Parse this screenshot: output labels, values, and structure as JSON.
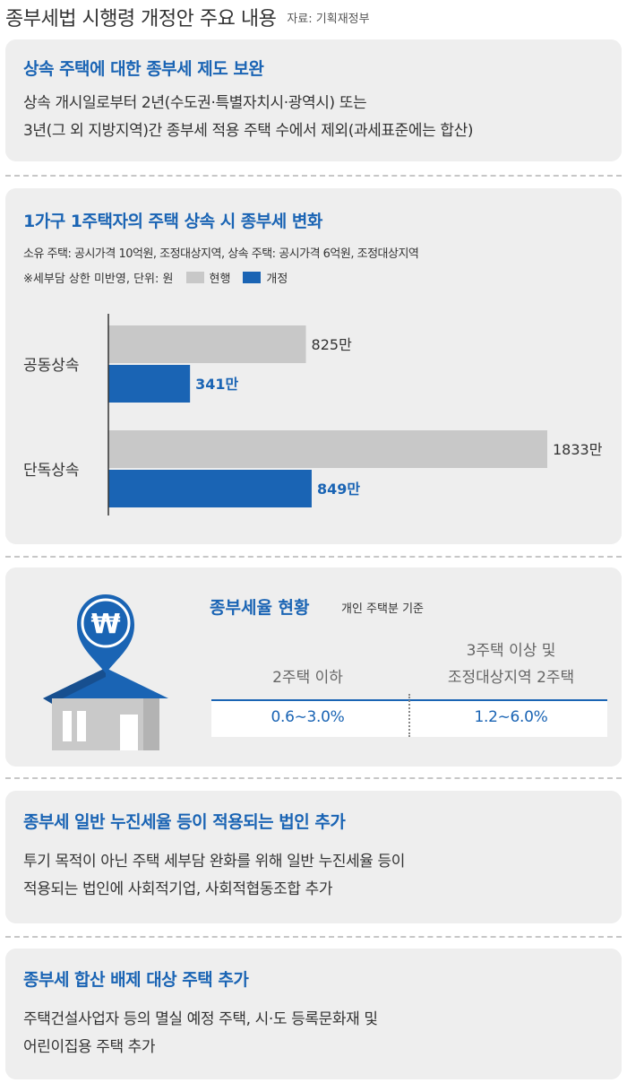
{
  "header": {
    "title": "종부세법 시행령 개정안 주요 내용",
    "source": "자료: 기획재정부"
  },
  "section1": {
    "title": "상속 주택에 대한 종부세 제도 보완",
    "lines": [
      "상속 개시일로부터 2년(수도권·특별자치시·광역시) 또는",
      "3년(그 외 지방지역)간 종부세 적용 주택 수에서 제외(과세표준에는 합산)"
    ]
  },
  "section2": {
    "title": "1가구 1주택자의 주택 상속 시 종부세 변화",
    "note1": "소유 주택: 공시가격 10억원, 조정대상지역, 상속 주택: 공시가격 6억원, 조정대상지역",
    "note2": "※세부담 상한 미반영, 단위: 원",
    "legend_current": "현행",
    "legend_revised": "개정"
  },
  "chart_data": {
    "type": "bar",
    "orientation": "horizontal",
    "title": "1가구 1주택자의 주택 상속 시 종부세 변화",
    "categories": [
      "공동상속",
      "단독상속"
    ],
    "series": [
      {
        "name": "현행",
        "values": [
          825,
          1833
        ],
        "labels": [
          "825만",
          "1833만"
        ],
        "color": "#c8c8c8"
      },
      {
        "name": "개정",
        "values": [
          341,
          849
        ],
        "labels": [
          "341만",
          "849만"
        ],
        "color": "#1a64b4"
      }
    ],
    "unit": "만원",
    "xlim": [
      0,
      1833
    ],
    "grid": false,
    "legend": "top-left"
  },
  "section3": {
    "title": "종부세율 현황",
    "subtitle": "개인 주택분 기준",
    "col1_header": "2주택 이하",
    "col2_header_line1": "3주택 이상 및",
    "col2_header_line2": "조정대상지역 2주택",
    "col1_value": "0.6∼3.0%",
    "col2_value": "1.2∼6.0%",
    "icon_symbol": "₩",
    "icon_name": "won-pin-house-icon"
  },
  "section4": {
    "title": "종부세 일반 누진세율 등이 적용되는 법인 추가",
    "lines": [
      "투기 목적이 아닌 주택 세부담 완화를 위해 일반 누진세율 등이",
      "적용되는 법인에 사회적기업, 사회적협동조합 추가"
    ]
  },
  "section5": {
    "title": "종부세 합산 배제 대상 주택 추가",
    "lines": [
      "주택건설사업자 등의 멸실 예정 주택, 시·도 등록문화재 및",
      "어린이집용 주택 추가"
    ]
  },
  "colors": {
    "accent": "#1a64b4",
    "bar_current": "#c8c8c8",
    "card_bg": "#eeeeee"
  }
}
